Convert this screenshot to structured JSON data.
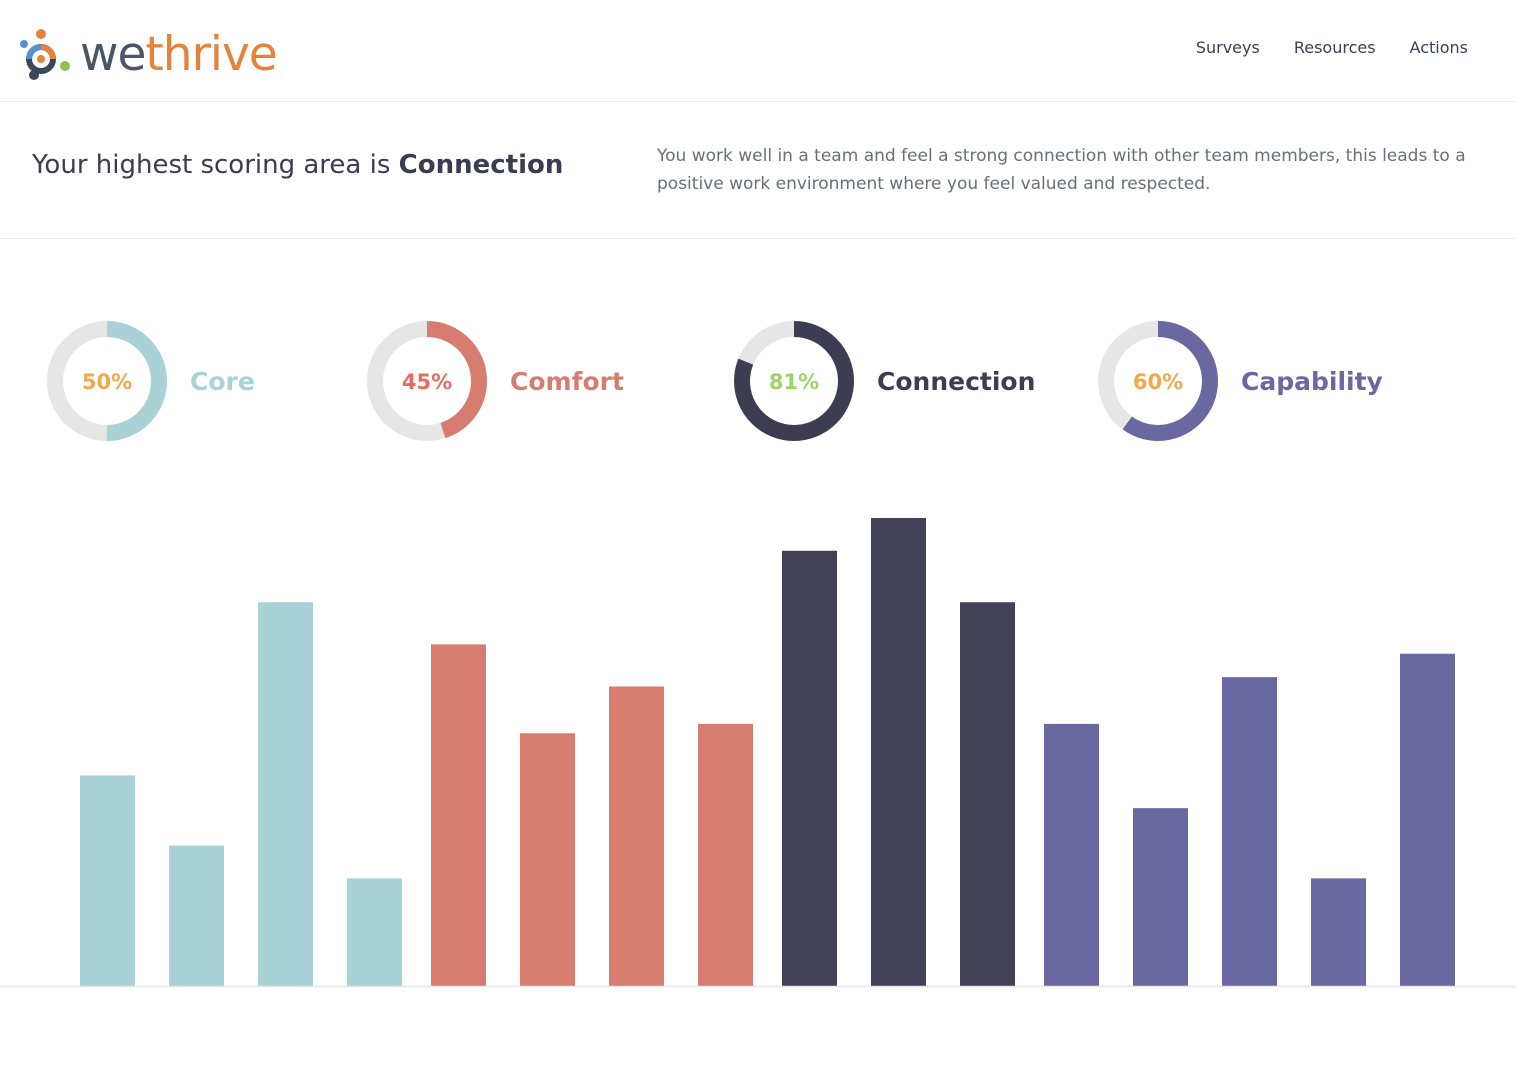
{
  "app": {
    "logo_we": "we",
    "logo_thrive": "thrive",
    "nav": [
      {
        "label": "Surveys"
      },
      {
        "label": "Resources"
      },
      {
        "label": "Actions"
      }
    ]
  },
  "summary": {
    "headline_prefix": "Your highest scoring area is",
    "headline_highlight": "Connection",
    "description": "You work well in a team and feel a strong connection with other team members, this leads to a positive work environment where you feel valued and respected."
  },
  "scores": [
    {
      "name": "Core",
      "value": 50,
      "label": "50%",
      "color": "#a9d2d6",
      "label_color": "#a9d2d6",
      "pct_color": "#f0a84a"
    },
    {
      "name": "Comfort",
      "value": 45,
      "label": "45%",
      "color": "#d77d70",
      "label_color": "#d77d70",
      "pct_color": "#e86b62"
    },
    {
      "name": "Connection",
      "value": 81,
      "label": "81%",
      "color": "#3c3d52",
      "label_color": "#3c3d52",
      "pct_color": "#9bd56a"
    },
    {
      "name": "Capability",
      "value": 60,
      "label": "60%",
      "color": "#6a68a0",
      "label_color": "#6a68a0",
      "pct_color": "#f0a84a"
    }
  ],
  "chart_data": {
    "type": "bar",
    "title": "",
    "xlabel": "",
    "ylabel": "",
    "ylim": [
      0,
      100
    ],
    "series": [
      {
        "group": "Core",
        "color": "#a9d2d6",
        "values": [
          45,
          30,
          82,
          23
        ]
      },
      {
        "group": "Comfort",
        "color": "#d77d70",
        "values": [
          73,
          54,
          64,
          56
        ]
      },
      {
        "group": "Connection",
        "color": "#414157",
        "values": [
          93,
          100,
          82
        ]
      },
      {
        "group": "Capability",
        "color": "#6a68a0",
        "values": [
          56,
          38,
          66,
          23,
          71
        ]
      }
    ]
  }
}
